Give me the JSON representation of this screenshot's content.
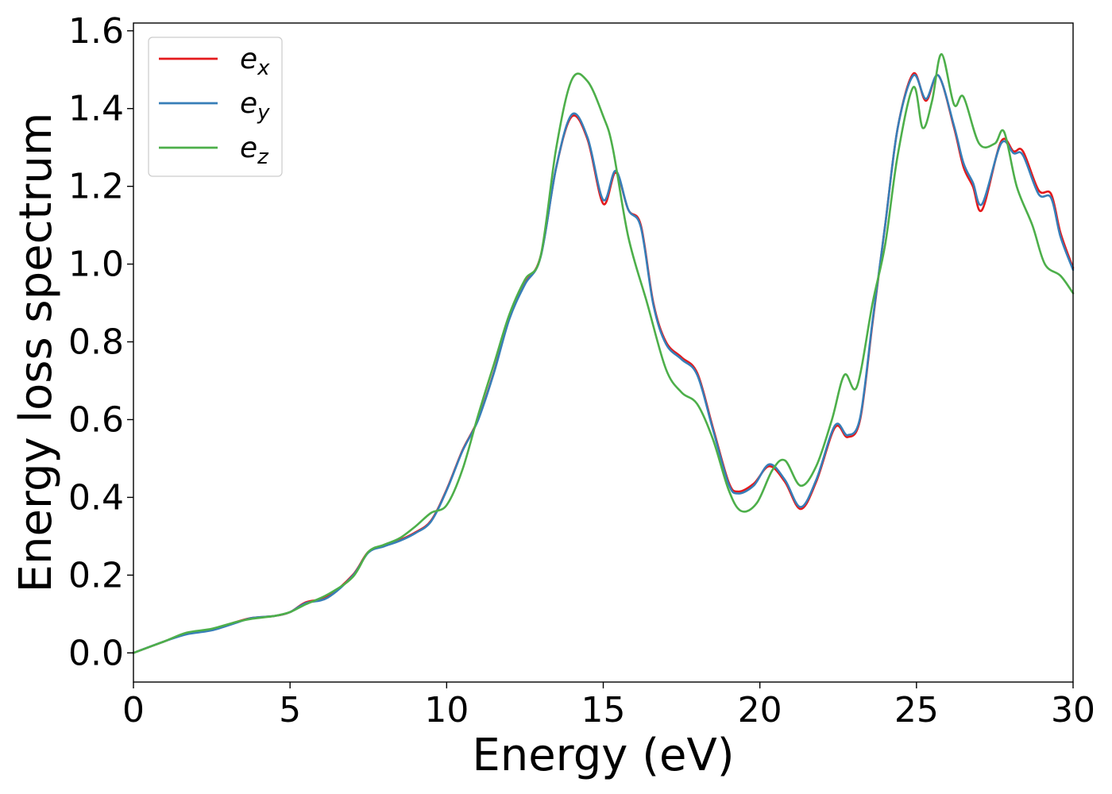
{
  "chart_data": {
    "type": "line",
    "title": "",
    "xlabel": "Energy (eV)",
    "ylabel": "Energy loss spectrum",
    "xlim": [
      0,
      30
    ],
    "ylim": [
      -0.075,
      1.62
    ],
    "xticks": [
      0,
      5,
      10,
      15,
      20,
      25,
      30
    ],
    "yticks": [
      0.0,
      0.2,
      0.4,
      0.6,
      0.8,
      1.0,
      1.2,
      1.4,
      1.6
    ],
    "xtick_labels": [
      "0",
      "5",
      "10",
      "15",
      "20",
      "25",
      "30"
    ],
    "ytick_labels": [
      "0.0",
      "0.2",
      "0.4",
      "0.6",
      "0.8",
      "1.0",
      "1.2",
      "1.4",
      "1.6"
    ],
    "grid": false,
    "legend_position": "top-left",
    "series": [
      {
        "name": "e",
        "subscript": "x",
        "color": "#e41a1c",
        "points": [
          [
            0,
            0.0
          ],
          [
            1,
            0.03
          ],
          [
            1.7,
            0.05
          ],
          [
            2.5,
            0.06
          ],
          [
            3.3,
            0.08
          ],
          [
            3.8,
            0.09
          ],
          [
            4.5,
            0.095
          ],
          [
            5,
            0.105
          ],
          [
            5.5,
            0.13
          ],
          [
            6.2,
            0.145
          ],
          [
            7,
            0.2
          ],
          [
            7.5,
            0.26
          ],
          [
            8,
            0.275
          ],
          [
            8.5,
            0.29
          ],
          [
            9,
            0.31
          ],
          [
            9.5,
            0.34
          ],
          [
            10,
            0.42
          ],
          [
            10.5,
            0.52
          ],
          [
            11,
            0.6
          ],
          [
            11.5,
            0.72
          ],
          [
            12,
            0.86
          ],
          [
            12.5,
            0.95
          ],
          [
            13,
            1.02
          ],
          [
            13.5,
            1.25
          ],
          [
            14,
            1.38
          ],
          [
            14.5,
            1.32
          ],
          [
            15,
            1.155
          ],
          [
            15.4,
            1.235
          ],
          [
            15.8,
            1.14
          ],
          [
            16.2,
            1.1
          ],
          [
            16.6,
            0.9
          ],
          [
            17,
            0.8
          ],
          [
            17.5,
            0.76
          ],
          [
            18,
            0.72
          ],
          [
            18.5,
            0.58
          ],
          [
            19,
            0.44
          ],
          [
            19.3,
            0.415
          ],
          [
            19.8,
            0.435
          ],
          [
            20.3,
            0.48
          ],
          [
            20.8,
            0.44
          ],
          [
            21.3,
            0.37
          ],
          [
            21.8,
            0.44
          ],
          [
            22.4,
            0.58
          ],
          [
            22.8,
            0.555
          ],
          [
            23.2,
            0.6
          ],
          [
            23.6,
            0.85
          ],
          [
            24,
            1.1
          ],
          [
            24.4,
            1.35
          ],
          [
            24.9,
            1.49
          ],
          [
            25.3,
            1.42
          ],
          [
            25.7,
            1.485
          ],
          [
            26.2,
            1.35
          ],
          [
            26.5,
            1.25
          ],
          [
            26.8,
            1.2
          ],
          [
            27.1,
            1.14
          ],
          [
            27.7,
            1.315
          ],
          [
            28.1,
            1.29
          ],
          [
            28.4,
            1.29
          ],
          [
            28.9,
            1.19
          ],
          [
            29.3,
            1.18
          ],
          [
            29.6,
            1.08
          ],
          [
            30,
            0.99
          ]
        ]
      },
      {
        "name": "e",
        "subscript": "y",
        "color": "#377eb8",
        "points": [
          [
            0,
            0.0
          ],
          [
            1,
            0.03
          ],
          [
            1.7,
            0.048
          ],
          [
            2.5,
            0.058
          ],
          [
            3.3,
            0.078
          ],
          [
            3.8,
            0.09
          ],
          [
            4.5,
            0.095
          ],
          [
            5,
            0.105
          ],
          [
            5.5,
            0.128
          ],
          [
            6.2,
            0.142
          ],
          [
            7,
            0.198
          ],
          [
            7.5,
            0.258
          ],
          [
            8,
            0.274
          ],
          [
            8.5,
            0.288
          ],
          [
            9,
            0.308
          ],
          [
            9.5,
            0.338
          ],
          [
            10,
            0.418
          ],
          [
            10.5,
            0.518
          ],
          [
            11,
            0.598
          ],
          [
            11.5,
            0.718
          ],
          [
            12,
            0.858
          ],
          [
            12.5,
            0.948
          ],
          [
            13,
            1.018
          ],
          [
            13.5,
            1.25
          ],
          [
            14,
            1.385
          ],
          [
            14.5,
            1.325
          ],
          [
            15,
            1.165
          ],
          [
            15.4,
            1.24
          ],
          [
            15.8,
            1.14
          ],
          [
            16.2,
            1.095
          ],
          [
            16.6,
            0.895
          ],
          [
            17,
            0.795
          ],
          [
            17.5,
            0.755
          ],
          [
            18,
            0.715
          ],
          [
            18.5,
            0.575
          ],
          [
            19,
            0.435
          ],
          [
            19.3,
            0.41
          ],
          [
            19.8,
            0.43
          ],
          [
            20.3,
            0.485
          ],
          [
            20.8,
            0.445
          ],
          [
            21.3,
            0.375
          ],
          [
            21.8,
            0.445
          ],
          [
            22.4,
            0.585
          ],
          [
            22.8,
            0.56
          ],
          [
            23.2,
            0.605
          ],
          [
            23.6,
            0.855
          ],
          [
            24,
            1.1
          ],
          [
            24.4,
            1.35
          ],
          [
            24.9,
            1.485
          ],
          [
            25.3,
            1.425
          ],
          [
            25.7,
            1.485
          ],
          [
            26.2,
            1.355
          ],
          [
            26.5,
            1.26
          ],
          [
            26.8,
            1.21
          ],
          [
            27.1,
            1.155
          ],
          [
            27.7,
            1.31
          ],
          [
            28.1,
            1.285
          ],
          [
            28.4,
            1.28
          ],
          [
            28.9,
            1.18
          ],
          [
            29.3,
            1.17
          ],
          [
            29.6,
            1.07
          ],
          [
            30,
            0.985
          ]
        ]
      },
      {
        "name": "e",
        "subscript": "z",
        "color": "#4daf4a",
        "points": [
          [
            0,
            0.0
          ],
          [
            1,
            0.03
          ],
          [
            1.7,
            0.052
          ],
          [
            2.5,
            0.062
          ],
          [
            3.3,
            0.08
          ],
          [
            3.8,
            0.088
          ],
          [
            4.5,
            0.095
          ],
          [
            5,
            0.105
          ],
          [
            5.5,
            0.125
          ],
          [
            6.2,
            0.15
          ],
          [
            7,
            0.195
          ],
          [
            7.5,
            0.26
          ],
          [
            8,
            0.278
          ],
          [
            8.5,
            0.295
          ],
          [
            9,
            0.325
          ],
          [
            9.5,
            0.36
          ],
          [
            10,
            0.38
          ],
          [
            10.5,
            0.47
          ],
          [
            11,
            0.61
          ],
          [
            11.5,
            0.74
          ],
          [
            12,
            0.87
          ],
          [
            12.5,
            0.96
          ],
          [
            13,
            1.02
          ],
          [
            13.5,
            1.3
          ],
          [
            14,
            1.475
          ],
          [
            14.5,
            1.47
          ],
          [
            15,
            1.38
          ],
          [
            15.3,
            1.3
          ],
          [
            15.8,
            1.07
          ],
          [
            16.4,
            0.9
          ],
          [
            17,
            0.73
          ],
          [
            17.5,
            0.67
          ],
          [
            18,
            0.64
          ],
          [
            18.5,
            0.55
          ],
          [
            19,
            0.42
          ],
          [
            19.4,
            0.365
          ],
          [
            19.9,
            0.385
          ],
          [
            20.4,
            0.47
          ],
          [
            20.8,
            0.495
          ],
          [
            21.3,
            0.43
          ],
          [
            21.8,
            0.48
          ],
          [
            22.3,
            0.6
          ],
          [
            22.7,
            0.715
          ],
          [
            23.1,
            0.685
          ],
          [
            23.6,
            0.9
          ],
          [
            24,
            1.05
          ],
          [
            24.4,
            1.28
          ],
          [
            24.9,
            1.455
          ],
          [
            25.2,
            1.35
          ],
          [
            25.5,
            1.42
          ],
          [
            25.8,
            1.54
          ],
          [
            26.2,
            1.41
          ],
          [
            26.5,
            1.43
          ],
          [
            27,
            1.31
          ],
          [
            27.5,
            1.31
          ],
          [
            27.8,
            1.34
          ],
          [
            28.2,
            1.2
          ],
          [
            28.7,
            1.1
          ],
          [
            29.1,
            1.0
          ],
          [
            29.6,
            0.97
          ],
          [
            30,
            0.925
          ]
        ]
      }
    ]
  }
}
